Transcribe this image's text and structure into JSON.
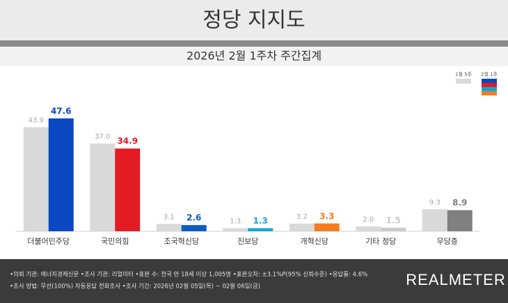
{
  "chart_data": {
    "type": "bar",
    "title": "정당 지지도",
    "subtitle": "2026년 2월 1주차 주간집계",
    "categories": [
      "더불어민주당",
      "국민의힘",
      "조국혁신당",
      "진보당",
      "개혁신당",
      "기타 정당",
      "무당층"
    ],
    "series": [
      {
        "name": "1월 5주",
        "color": "#d9d9d9",
        "label_color": "#a6a6a6",
        "values": [
          43.9,
          37.0,
          3.1,
          1.3,
          3.2,
          2.0,
          9.3
        ],
        "value_labels": [
          "43.9",
          "37.0",
          "3.1",
          "1.3",
          "3.2",
          "2.0",
          "9.3"
        ]
      },
      {
        "name": "2월 1주",
        "colors": [
          "#0a47c2",
          "#e31b23",
          "#0b5bc4",
          "#12a7d6",
          "#f47b20",
          "#c9c9c9",
          "#808080"
        ],
        "values": [
          47.6,
          34.9,
          2.6,
          1.3,
          3.3,
          1.5,
          8.9
        ]
      }
    ]
  },
  "footer": {
    "lines": [
      "•의뢰 기관: 에너지경제신문  •조사 기관: 리얼미터  •표본 수: 전국 만 18세 이상 1,005명  •표본오차: ±3.1%P(95% 신뢰수준)  •응답률: 4.6%",
      "•조사 방법: 무선(100%) 자동응답 전화조사  •조사 기간: 2026년 02월 05일(목) ~ 02월 06일(금)"
    ],
    "brand": "REALMETER"
  }
}
